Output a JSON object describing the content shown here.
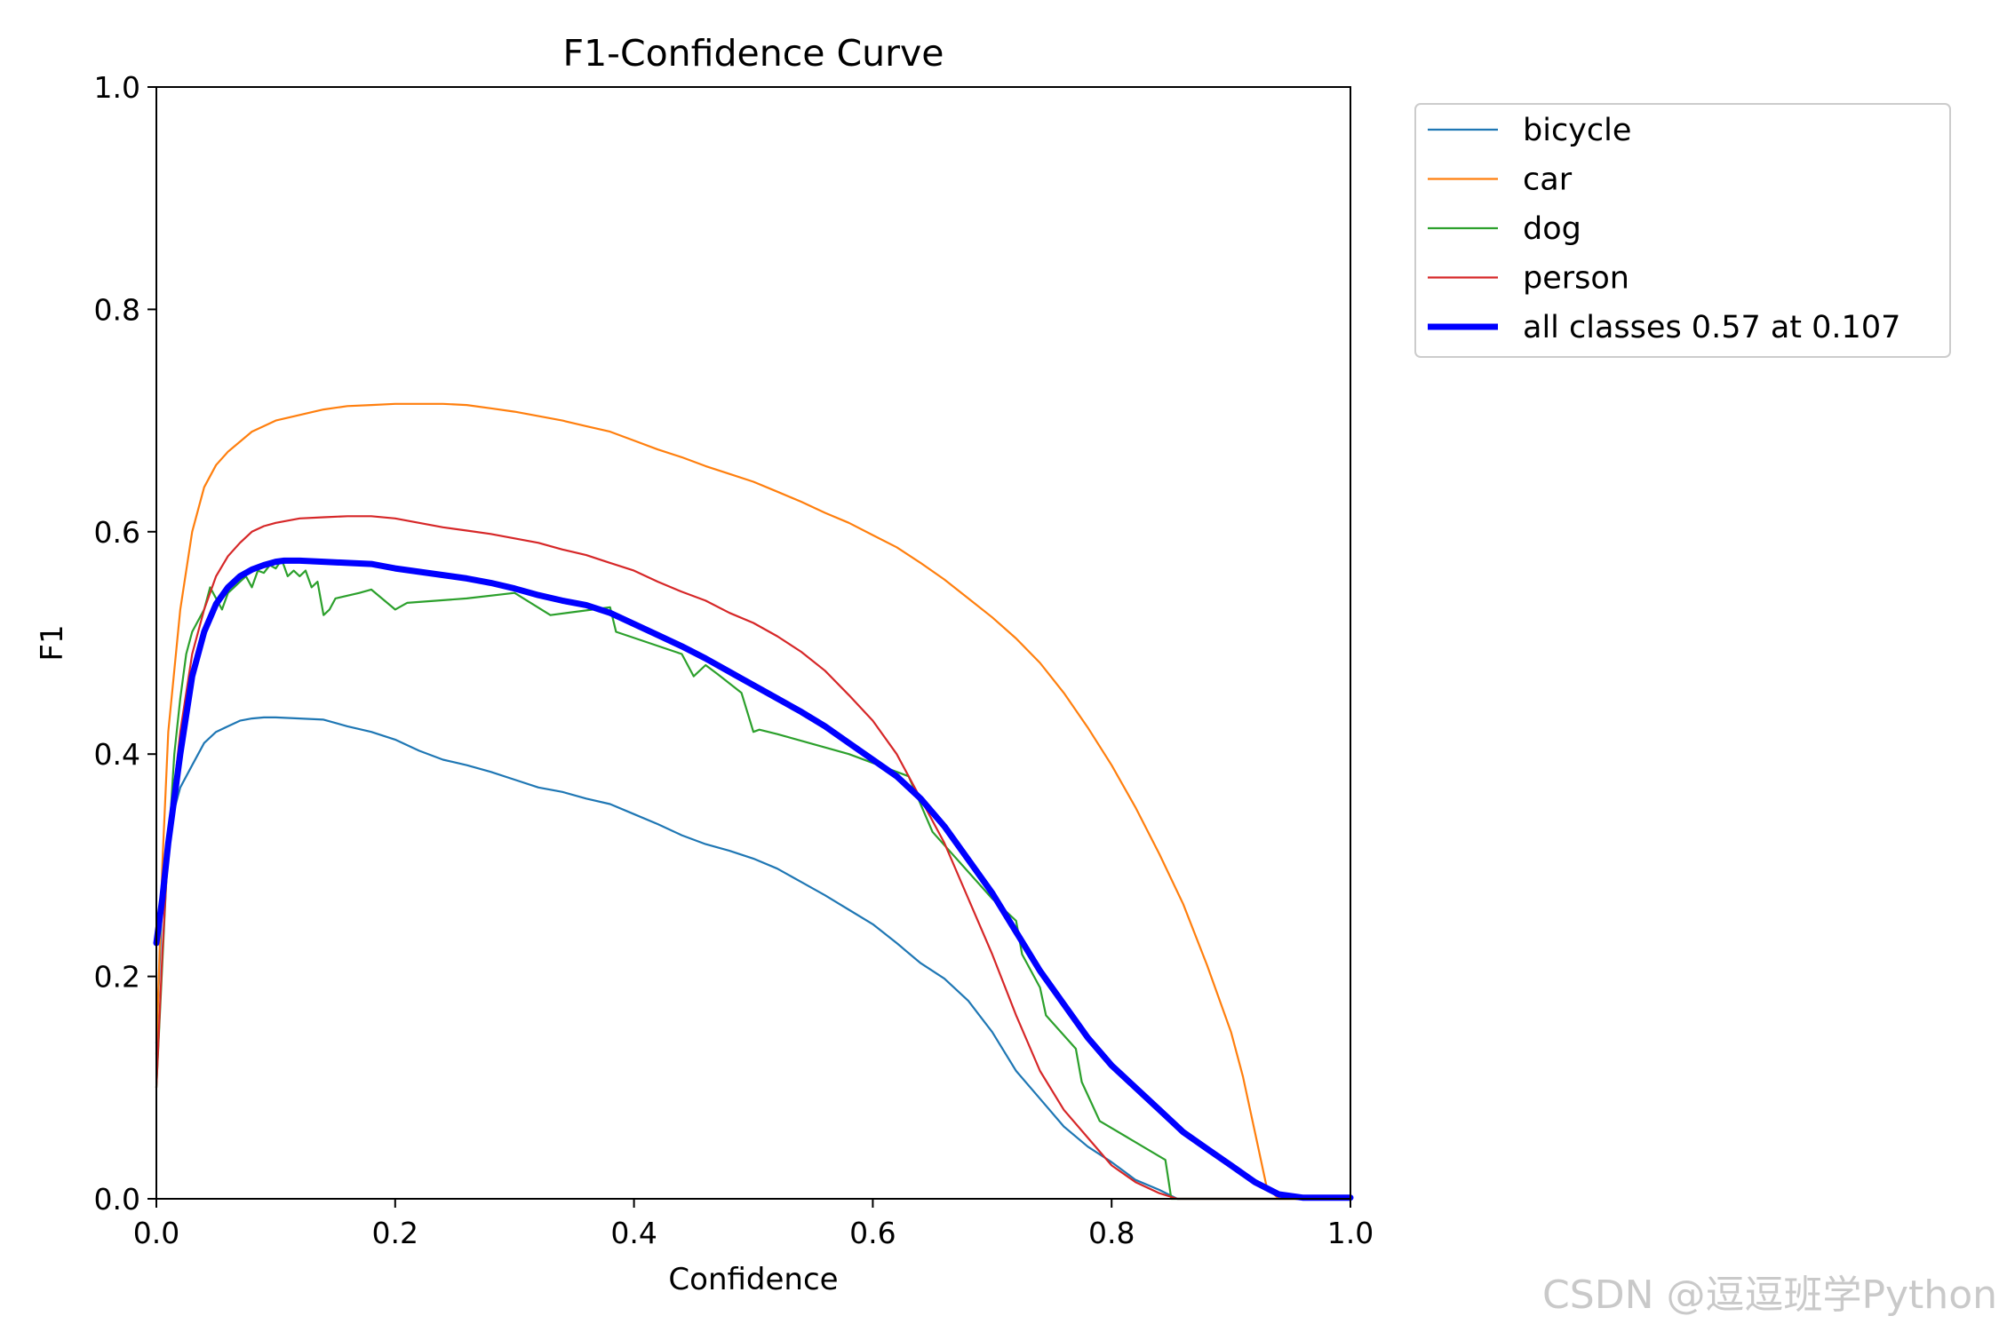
{
  "watermark": "CSDN @逗逗班学Python",
  "chart_data": {
    "type": "line",
    "title": "F1-Confidence Curve",
    "xlabel": "Confidence",
    "ylabel": "F1",
    "xlim": [
      0,
      1
    ],
    "ylim": [
      0,
      1
    ],
    "xticks": [
      "0.0",
      "0.2",
      "0.4",
      "0.6",
      "0.8",
      "1.0"
    ],
    "yticks": [
      "0.0",
      "0.2",
      "0.4",
      "0.6",
      "0.8",
      "1.0"
    ],
    "grid": false,
    "legend_position": "outside-top-right",
    "series": [
      {
        "name": "bicycle",
        "color": "#1f77b4",
        "width": 2.2,
        "points": [
          [
            0.0,
            0.14
          ],
          [
            0.005,
            0.27
          ],
          [
            0.01,
            0.33
          ],
          [
            0.02,
            0.37
          ],
          [
            0.03,
            0.39
          ],
          [
            0.04,
            0.41
          ],
          [
            0.05,
            0.42
          ],
          [
            0.06,
            0.425
          ],
          [
            0.07,
            0.43
          ],
          [
            0.08,
            0.432
          ],
          [
            0.09,
            0.433
          ],
          [
            0.1,
            0.433
          ],
          [
            0.12,
            0.432
          ],
          [
            0.14,
            0.431
          ],
          [
            0.16,
            0.425
          ],
          [
            0.18,
            0.42
          ],
          [
            0.2,
            0.413
          ],
          [
            0.22,
            0.403
          ],
          [
            0.24,
            0.395
          ],
          [
            0.26,
            0.39
          ],
          [
            0.28,
            0.384
          ],
          [
            0.3,
            0.377
          ],
          [
            0.32,
            0.37
          ],
          [
            0.34,
            0.366
          ],
          [
            0.36,
            0.36
          ],
          [
            0.38,
            0.355
          ],
          [
            0.4,
            0.346
          ],
          [
            0.42,
            0.337
          ],
          [
            0.44,
            0.327
          ],
          [
            0.46,
            0.319
          ],
          [
            0.48,
            0.313
          ],
          [
            0.5,
            0.306
          ],
          [
            0.52,
            0.297
          ],
          [
            0.54,
            0.285
          ],
          [
            0.56,
            0.273
          ],
          [
            0.58,
            0.26
          ],
          [
            0.6,
            0.247
          ],
          [
            0.62,
            0.23
          ],
          [
            0.64,
            0.212
          ],
          [
            0.66,
            0.198
          ],
          [
            0.68,
            0.178
          ],
          [
            0.7,
            0.15
          ],
          [
            0.72,
            0.115
          ],
          [
            0.74,
            0.09
          ],
          [
            0.76,
            0.065
          ],
          [
            0.78,
            0.047
          ],
          [
            0.8,
            0.033
          ],
          [
            0.82,
            0.017
          ],
          [
            0.84,
            0.008
          ],
          [
            0.855,
            0.0
          ],
          [
            1.0,
            0.0
          ]
        ]
      },
      {
        "name": "car",
        "color": "#ff7f0e",
        "width": 2.2,
        "points": [
          [
            0.0,
            0.13
          ],
          [
            0.005,
            0.3
          ],
          [
            0.01,
            0.42
          ],
          [
            0.02,
            0.53
          ],
          [
            0.03,
            0.6
          ],
          [
            0.04,
            0.64
          ],
          [
            0.05,
            0.66
          ],
          [
            0.06,
            0.672
          ],
          [
            0.08,
            0.69
          ],
          [
            0.1,
            0.7
          ],
          [
            0.12,
            0.705
          ],
          [
            0.14,
            0.71
          ],
          [
            0.16,
            0.713
          ],
          [
            0.18,
            0.714
          ],
          [
            0.2,
            0.715
          ],
          [
            0.22,
            0.715
          ],
          [
            0.24,
            0.715
          ],
          [
            0.26,
            0.714
          ],
          [
            0.28,
            0.711
          ],
          [
            0.3,
            0.708
          ],
          [
            0.32,
            0.704
          ],
          [
            0.34,
            0.7
          ],
          [
            0.36,
            0.695
          ],
          [
            0.38,
            0.69
          ],
          [
            0.4,
            0.682
          ],
          [
            0.42,
            0.674
          ],
          [
            0.44,
            0.667
          ],
          [
            0.46,
            0.659
          ],
          [
            0.48,
            0.652
          ],
          [
            0.5,
            0.645
          ],
          [
            0.52,
            0.636
          ],
          [
            0.54,
            0.627
          ],
          [
            0.56,
            0.617
          ],
          [
            0.58,
            0.608
          ],
          [
            0.6,
            0.597
          ],
          [
            0.62,
            0.586
          ],
          [
            0.64,
            0.572
          ],
          [
            0.66,
            0.557
          ],
          [
            0.68,
            0.54
          ],
          [
            0.7,
            0.523
          ],
          [
            0.72,
            0.504
          ],
          [
            0.74,
            0.482
          ],
          [
            0.76,
            0.455
          ],
          [
            0.78,
            0.424
          ],
          [
            0.8,
            0.39
          ],
          [
            0.82,
            0.352
          ],
          [
            0.84,
            0.31
          ],
          [
            0.86,
            0.265
          ],
          [
            0.88,
            0.21
          ],
          [
            0.9,
            0.15
          ],
          [
            0.91,
            0.11
          ],
          [
            0.92,
            0.06
          ],
          [
            0.93,
            0.01
          ],
          [
            0.94,
            0.0
          ],
          [
            1.0,
            0.0
          ]
        ]
      },
      {
        "name": "dog",
        "color": "#2ca02c",
        "width": 2.2,
        "points": [
          [
            0.0,
            0.1
          ],
          [
            0.008,
            0.28
          ],
          [
            0.015,
            0.4
          ],
          [
            0.02,
            0.45
          ],
          [
            0.025,
            0.49
          ],
          [
            0.03,
            0.51
          ],
          [
            0.035,
            0.52
          ],
          [
            0.04,
            0.53
          ],
          [
            0.045,
            0.55
          ],
          [
            0.05,
            0.54
          ],
          [
            0.055,
            0.53
          ],
          [
            0.06,
            0.545
          ],
          [
            0.065,
            0.55
          ],
          [
            0.07,
            0.555
          ],
          [
            0.075,
            0.56
          ],
          [
            0.08,
            0.55
          ],
          [
            0.085,
            0.565
          ],
          [
            0.09,
            0.563
          ],
          [
            0.095,
            0.57
          ],
          [
            0.1,
            0.567
          ],
          [
            0.105,
            0.575
          ],
          [
            0.11,
            0.56
          ],
          [
            0.115,
            0.565
          ],
          [
            0.12,
            0.56
          ],
          [
            0.125,
            0.565
          ],
          [
            0.13,
            0.55
          ],
          [
            0.135,
            0.555
          ],
          [
            0.14,
            0.525
          ],
          [
            0.145,
            0.53
          ],
          [
            0.15,
            0.54
          ],
          [
            0.17,
            0.545
          ],
          [
            0.18,
            0.548
          ],
          [
            0.2,
            0.53
          ],
          [
            0.21,
            0.536
          ],
          [
            0.26,
            0.54
          ],
          [
            0.3,
            0.545
          ],
          [
            0.33,
            0.525
          ],
          [
            0.38,
            0.532
          ],
          [
            0.385,
            0.51
          ],
          [
            0.44,
            0.49
          ],
          [
            0.45,
            0.47
          ],
          [
            0.46,
            0.48
          ],
          [
            0.47,
            0.472
          ],
          [
            0.49,
            0.455
          ],
          [
            0.5,
            0.42
          ],
          [
            0.505,
            0.422
          ],
          [
            0.52,
            0.418
          ],
          [
            0.58,
            0.4
          ],
          [
            0.63,
            0.38
          ],
          [
            0.65,
            0.33
          ],
          [
            0.7,
            0.27
          ],
          [
            0.72,
            0.25
          ],
          [
            0.725,
            0.22
          ],
          [
            0.74,
            0.19
          ],
          [
            0.745,
            0.165
          ],
          [
            0.77,
            0.135
          ],
          [
            0.775,
            0.105
          ],
          [
            0.79,
            0.07
          ],
          [
            0.845,
            0.035
          ],
          [
            0.85,
            0.0
          ],
          [
            1.0,
            0.0
          ]
        ]
      },
      {
        "name": "person",
        "color": "#d62728",
        "width": 2.2,
        "points": [
          [
            0.0,
            0.1
          ],
          [
            0.005,
            0.22
          ],
          [
            0.01,
            0.32
          ],
          [
            0.02,
            0.42
          ],
          [
            0.03,
            0.49
          ],
          [
            0.04,
            0.53
          ],
          [
            0.05,
            0.56
          ],
          [
            0.06,
            0.578
          ],
          [
            0.07,
            0.59
          ],
          [
            0.08,
            0.6
          ],
          [
            0.09,
            0.605
          ],
          [
            0.1,
            0.608
          ],
          [
            0.12,
            0.612
          ],
          [
            0.14,
            0.613
          ],
          [
            0.16,
            0.614
          ],
          [
            0.18,
            0.614
          ],
          [
            0.2,
            0.612
          ],
          [
            0.22,
            0.608
          ],
          [
            0.24,
            0.604
          ],
          [
            0.26,
            0.601
          ],
          [
            0.28,
            0.598
          ],
          [
            0.3,
            0.594
          ],
          [
            0.32,
            0.59
          ],
          [
            0.34,
            0.584
          ],
          [
            0.36,
            0.579
          ],
          [
            0.38,
            0.572
          ],
          [
            0.4,
            0.565
          ],
          [
            0.42,
            0.555
          ],
          [
            0.44,
            0.546
          ],
          [
            0.46,
            0.538
          ],
          [
            0.48,
            0.527
          ],
          [
            0.5,
            0.518
          ],
          [
            0.52,
            0.506
          ],
          [
            0.54,
            0.492
          ],
          [
            0.56,
            0.475
          ],
          [
            0.58,
            0.453
          ],
          [
            0.6,
            0.43
          ],
          [
            0.62,
            0.4
          ],
          [
            0.64,
            0.36
          ],
          [
            0.66,
            0.32
          ],
          [
            0.68,
            0.27
          ],
          [
            0.7,
            0.22
          ],
          [
            0.72,
            0.165
          ],
          [
            0.74,
            0.115
          ],
          [
            0.76,
            0.08
          ],
          [
            0.78,
            0.055
          ],
          [
            0.8,
            0.03
          ],
          [
            0.82,
            0.015
          ],
          [
            0.84,
            0.005
          ],
          [
            0.855,
            0.0
          ],
          [
            1.0,
            0.0
          ]
        ]
      },
      {
        "name": "all classes 0.57 at 0.107",
        "color": "#0000ff",
        "width": 7,
        "points": [
          [
            0.0,
            0.23
          ],
          [
            0.005,
            0.27
          ],
          [
            0.01,
            0.32
          ],
          [
            0.02,
            0.4
          ],
          [
            0.03,
            0.47
          ],
          [
            0.04,
            0.51
          ],
          [
            0.05,
            0.535
          ],
          [
            0.06,
            0.55
          ],
          [
            0.07,
            0.56
          ],
          [
            0.08,
            0.566
          ],
          [
            0.09,
            0.57
          ],
          [
            0.1,
            0.573
          ],
          [
            0.107,
            0.574
          ],
          [
            0.12,
            0.574
          ],
          [
            0.14,
            0.573
          ],
          [
            0.16,
            0.572
          ],
          [
            0.18,
            0.571
          ],
          [
            0.2,
            0.567
          ],
          [
            0.22,
            0.564
          ],
          [
            0.24,
            0.561
          ],
          [
            0.26,
            0.558
          ],
          [
            0.28,
            0.554
          ],
          [
            0.3,
            0.549
          ],
          [
            0.32,
            0.543
          ],
          [
            0.34,
            0.538
          ],
          [
            0.36,
            0.534
          ],
          [
            0.38,
            0.527
          ],
          [
            0.4,
            0.517
          ],
          [
            0.42,
            0.507
          ],
          [
            0.44,
            0.497
          ],
          [
            0.46,
            0.486
          ],
          [
            0.48,
            0.474
          ],
          [
            0.5,
            0.462
          ],
          [
            0.52,
            0.45
          ],
          [
            0.54,
            0.438
          ],
          [
            0.56,
            0.425
          ],
          [
            0.58,
            0.41
          ],
          [
            0.6,
            0.395
          ],
          [
            0.62,
            0.38
          ],
          [
            0.64,
            0.36
          ],
          [
            0.66,
            0.335
          ],
          [
            0.68,
            0.305
          ],
          [
            0.7,
            0.275
          ],
          [
            0.72,
            0.24
          ],
          [
            0.74,
            0.205
          ],
          [
            0.76,
            0.175
          ],
          [
            0.78,
            0.145
          ],
          [
            0.8,
            0.12
          ],
          [
            0.82,
            0.1
          ],
          [
            0.84,
            0.08
          ],
          [
            0.86,
            0.06
          ],
          [
            0.88,
            0.045
          ],
          [
            0.9,
            0.03
          ],
          [
            0.92,
            0.015
          ],
          [
            0.94,
            0.004
          ],
          [
            0.96,
            0.001
          ],
          [
            1.0,
            0.001
          ]
        ]
      }
    ]
  }
}
